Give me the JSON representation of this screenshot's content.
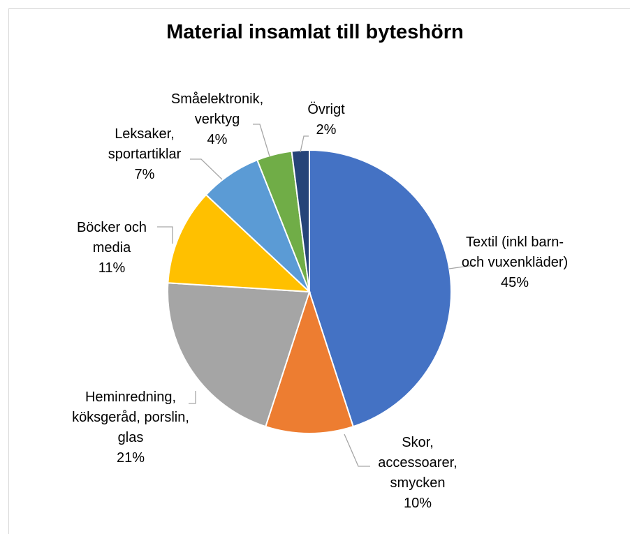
{
  "chart_data": {
    "type": "pie",
    "title": "Material insamlat till byteshörn",
    "categories": [
      "Textil (inkl barn- och vuxenkläder)",
      "Skor, accessoarer, smycken",
      "Heminredning, köksgeråd, porslin, glas",
      "Böcker och media",
      "Leksaker, sportartiklar",
      "Småelektronik, verktyg",
      "Övrigt"
    ],
    "values": [
      45,
      10,
      21,
      11,
      7,
      4,
      2
    ],
    "value_labels": [
      "45%",
      "10%",
      "21%",
      "11%",
      "7%",
      "4%",
      "2%"
    ],
    "colors": [
      "#4472c4",
      "#ed7d31",
      "#a5a5a5",
      "#ffc000",
      "#5b9bd5",
      "#70ad47",
      "#264478"
    ]
  }
}
